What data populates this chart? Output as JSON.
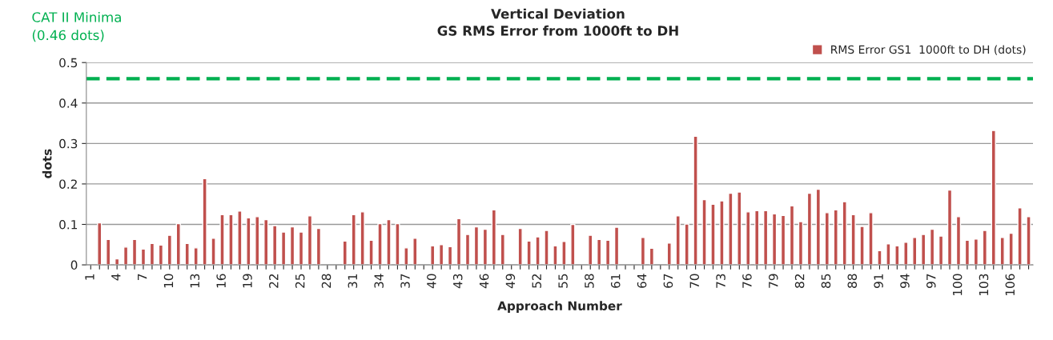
{
  "chart_data": {
    "type": "bar",
    "title": "Vertical Deviation\nGS RMS Error from 1000ft to DH",
    "xlabel": "Approach Number",
    "ylabel": "dots",
    "categories": [
      "1",
      null,
      null,
      "4",
      null,
      null,
      "7",
      null,
      null,
      "10",
      null,
      null,
      "13",
      null,
      null,
      "16",
      null,
      null,
      "19",
      null,
      null,
      "22",
      null,
      null,
      "25",
      null,
      null,
      "28",
      null,
      null,
      "31",
      null,
      null,
      "34",
      null,
      null,
      "37",
      null,
      null,
      "40",
      null,
      null,
      "43",
      null,
      null,
      "46",
      null,
      null,
      "49",
      null,
      null,
      "52",
      null,
      null,
      "55",
      null,
      null,
      "58",
      null,
      null,
      "61",
      null,
      null,
      "64",
      null,
      null,
      "67",
      null,
      null,
      "70",
      null,
      null,
      "73",
      null,
      null,
      "76",
      null,
      null,
      "79",
      null,
      null,
      "82",
      null,
      null,
      "85",
      null,
      null,
      "88",
      null,
      null,
      "91",
      null,
      null,
      "94",
      null,
      null,
      "97",
      null,
      null,
      "100",
      null,
      null,
      "103",
      null,
      null,
      "106",
      null,
      null
    ],
    "series": [
      {
        "name": "RMS Error GS1  1000ft to DH (dots)",
        "color": "#c0504d",
        "values": [
          null,
          0.104,
          0.063,
          0.015,
          0.044,
          0.063,
          0.039,
          0.053,
          0.049,
          0.073,
          0.102,
          0.053,
          0.042,
          0.213,
          0.066,
          0.124,
          0.124,
          0.133,
          0.116,
          0.119,
          0.112,
          0.097,
          0.081,
          0.094,
          0.081,
          0.121,
          0.09,
          null,
          null,
          0.059,
          0.124,
          0.131,
          0.061,
          0.102,
          0.112,
          0.102,
          0.042,
          0.066,
          null,
          0.047,
          0.05,
          0.045,
          0.114,
          0.075,
          0.094,
          0.088,
          0.136,
          0.075,
          null,
          0.09,
          0.059,
          0.069,
          0.085,
          0.047,
          0.058,
          0.1,
          null,
          0.073,
          0.063,
          0.061,
          0.093,
          null,
          null,
          0.068,
          0.041,
          null,
          0.054,
          0.121,
          0.101,
          0.318,
          0.161,
          0.15,
          0.158,
          0.177,
          0.18,
          0.131,
          0.134,
          0.134,
          0.126,
          0.122,
          0.146,
          0.107,
          0.177,
          0.187,
          0.129,
          0.136,
          0.156,
          0.124,
          0.095,
          0.129,
          0.035,
          0.052,
          0.047,
          0.056,
          0.068,
          0.075,
          0.088,
          0.071,
          0.185,
          0.119,
          0.061,
          0.064,
          0.085,
          0.332,
          0.068,
          0.078,
          0.141,
          0.119
        ]
      }
    ],
    "ylim": [
      0,
      0.5
    ],
    "yticks": [
      0,
      0.1,
      0.2,
      0.3,
      0.4,
      0.5
    ],
    "grid": "y",
    "legend": "top right",
    "ref_lines": [
      {
        "axis": "y",
        "value": 0.46,
        "label": "CAT II Minima\n(0.46 dots)",
        "color": "#00b050",
        "line_style": "dashed"
      }
    ]
  }
}
